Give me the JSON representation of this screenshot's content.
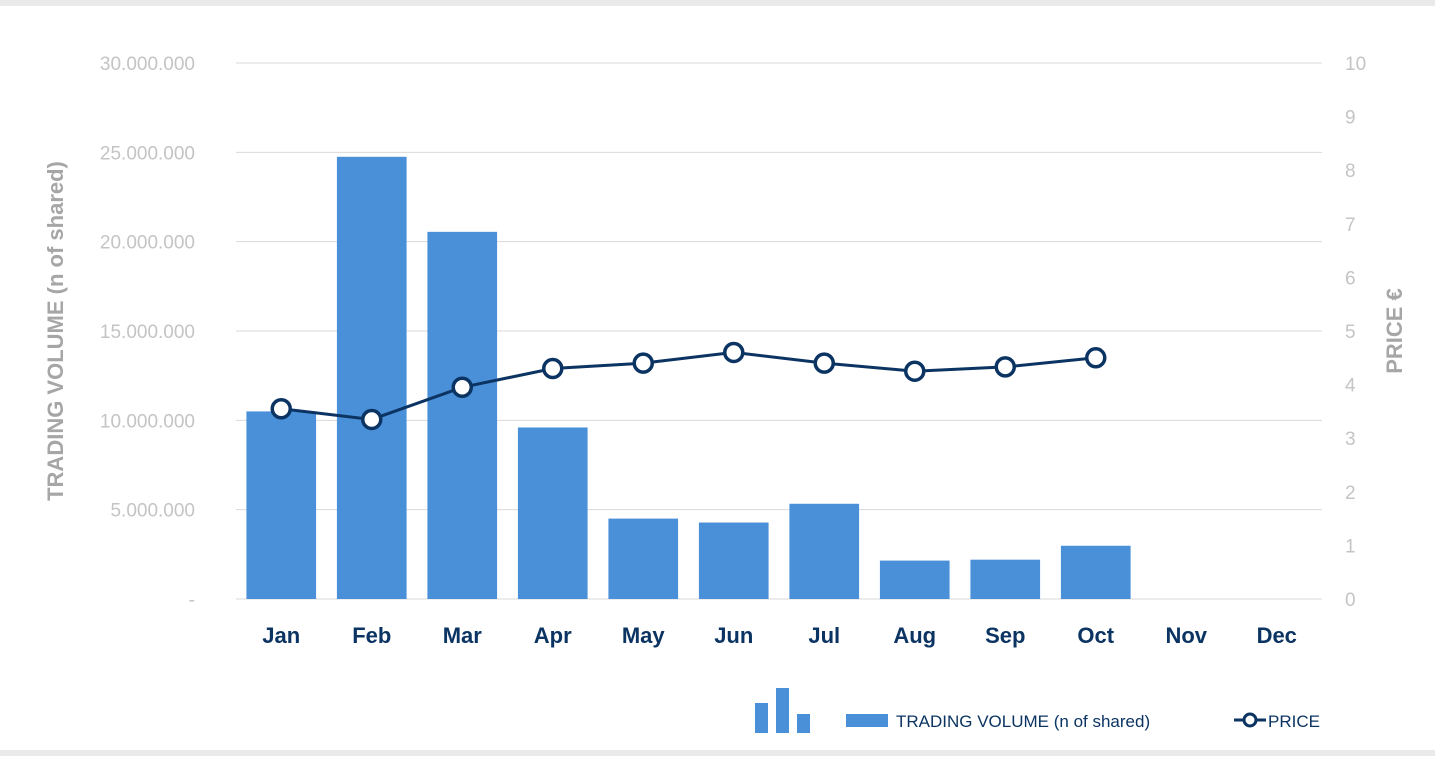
{
  "chart_data": {
    "type": "bar",
    "categories": [
      "Jan",
      "Feb",
      "Mar",
      "Apr",
      "May",
      "Jun",
      "Jul",
      "Aug",
      "Sep",
      "Oct",
      "Nov",
      "Dec"
    ],
    "series": [
      {
        "name": "TRADING  VOLUME (n of shared)",
        "type": "bar",
        "axis": "left",
        "color": "#4a90d9",
        "values": [
          10500000,
          24750000,
          20550000,
          9600000,
          4500000,
          4280000,
          5330000,
          2150000,
          2200000,
          2980000,
          null,
          null
        ]
      },
      {
        "name": "PRICE",
        "type": "line",
        "axis": "right",
        "color": "#0b3463",
        "marker": "open-circle",
        "values": [
          3.55,
          3.35,
          3.95,
          4.3,
          4.4,
          4.6,
          4.4,
          4.25,
          4.33,
          4.5,
          null,
          null
        ]
      }
    ],
    "ylabel": "TRADING  VOLUME (n of shared)",
    "y2label": "PRICE €",
    "ylim": [
      0,
      30000000
    ],
    "y2lim": [
      0,
      10
    ],
    "yticks": [
      "-",
      "5.000.000",
      "10.000.000",
      "15.000.000",
      "20.000.000",
      "25.000.000",
      "30.000.000"
    ],
    "y2ticks": [
      "0",
      "1",
      "2",
      "3",
      "4",
      "5",
      "6",
      "7",
      "8",
      "9",
      "10"
    ],
    "grid": true,
    "legend_position": "bottom-right"
  },
  "legend_icon": "column-chart-icon"
}
